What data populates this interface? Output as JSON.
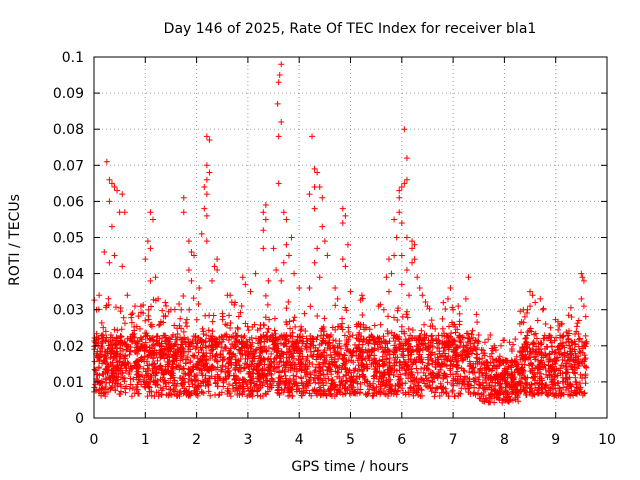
{
  "chart_data": {
    "type": "scatter",
    "title": "Day 146 of 2025, Rate Of TEC Index for receiver bla1",
    "xlabel": "GPS time / hours",
    "ylabel": "ROTI / TECUs",
    "xlim": [
      0,
      10
    ],
    "ylim": [
      0,
      0.1
    ],
    "x_ticks": [
      "0",
      "1",
      "2",
      "3",
      "4",
      "5",
      "6",
      "7",
      "8",
      "9",
      "10"
    ],
    "y_ticks": [
      "0",
      "0.01",
      "0.02",
      "0.03",
      "0.04",
      "0.05",
      "0.06",
      "0.07",
      "0.08",
      "0.09",
      "0.1"
    ],
    "grid": true,
    "marker": "+",
    "series_color": "#ff0000",
    "data_range_hours": [
      0,
      9.6
    ],
    "series": [
      {
        "name": "ROTI",
        "points": [
          [
            0.25,
            0.071
          ],
          [
            0.3,
            0.066
          ],
          [
            0.35,
            0.065
          ],
          [
            0.4,
            0.064
          ],
          [
            0.45,
            0.063
          ],
          [
            0.3,
            0.06
          ],
          [
            0.55,
            0.062
          ],
          [
            0.5,
            0.057
          ],
          [
            0.6,
            0.057
          ],
          [
            0.35,
            0.053
          ],
          [
            0.2,
            0.046
          ],
          [
            0.4,
            0.045
          ],
          [
            0.3,
            0.043
          ],
          [
            0.55,
            0.042
          ],
          [
            0.1,
            0.034
          ],
          [
            0.05,
            0.03
          ],
          [
            0.65,
            0.034
          ],
          [
            0.75,
            0.029
          ],
          [
            1.1,
            0.057
          ],
          [
            1.15,
            0.055
          ],
          [
            1.05,
            0.049
          ],
          [
            1.1,
            0.047
          ],
          [
            1.0,
            0.044
          ],
          [
            1.2,
            0.039
          ],
          [
            1.1,
            0.038
          ],
          [
            1.25,
            0.033
          ],
          [
            1.5,
            0.03
          ],
          [
            1.7,
            0.03
          ],
          [
            1.75,
            0.061
          ],
          [
            1.75,
            0.057
          ],
          [
            1.85,
            0.049
          ],
          [
            1.9,
            0.046
          ],
          [
            1.95,
            0.045
          ],
          [
            1.85,
            0.041
          ],
          [
            1.9,
            0.038
          ],
          [
            2.05,
            0.036
          ],
          [
            2.2,
            0.078
          ],
          [
            2.25,
            0.077
          ],
          [
            2.2,
            0.07
          ],
          [
            2.25,
            0.068
          ],
          [
            2.2,
            0.066
          ],
          [
            2.15,
            0.064
          ],
          [
            2.2,
            0.062
          ],
          [
            2.15,
            0.058
          ],
          [
            2.2,
            0.056
          ],
          [
            2.1,
            0.051
          ],
          [
            2.2,
            0.049
          ],
          [
            2.4,
            0.044
          ],
          [
            2.35,
            0.042
          ],
          [
            2.4,
            0.041
          ],
          [
            2.3,
            0.038
          ],
          [
            2.6,
            0.034
          ],
          [
            2.75,
            0.032
          ],
          [
            2.9,
            0.039
          ],
          [
            2.95,
            0.037
          ],
          [
            3.05,
            0.035
          ],
          [
            3.15,
            0.04
          ],
          [
            3.65,
            0.098
          ],
          [
            3.62,
            0.095
          ],
          [
            3.6,
            0.093
          ],
          [
            3.58,
            0.087
          ],
          [
            3.65,
            0.082
          ],
          [
            3.6,
            0.078
          ],
          [
            3.6,
            0.065
          ],
          [
            3.35,
            0.059
          ],
          [
            3.3,
            0.057
          ],
          [
            3.35,
            0.055
          ],
          [
            3.7,
            0.057
          ],
          [
            3.75,
            0.055
          ],
          [
            3.3,
            0.052
          ],
          [
            3.85,
            0.05
          ],
          [
            3.75,
            0.048
          ],
          [
            3.5,
            0.047
          ],
          [
            3.3,
            0.047
          ],
          [
            3.8,
            0.045
          ],
          [
            3.7,
            0.043
          ],
          [
            3.55,
            0.041
          ],
          [
            3.4,
            0.038
          ],
          [
            3.9,
            0.04
          ],
          [
            3.65,
            0.038
          ],
          [
            4.0,
            0.036
          ],
          [
            4.25,
            0.078
          ],
          [
            4.3,
            0.069
          ],
          [
            4.35,
            0.068
          ],
          [
            4.3,
            0.064
          ],
          [
            4.4,
            0.064
          ],
          [
            4.45,
            0.061
          ],
          [
            4.2,
            0.062
          ],
          [
            4.3,
            0.058
          ],
          [
            4.45,
            0.053
          ],
          [
            4.5,
            0.049
          ],
          [
            4.35,
            0.047
          ],
          [
            4.55,
            0.045
          ],
          [
            4.3,
            0.043
          ],
          [
            4.4,
            0.039
          ],
          [
            4.2,
            0.036
          ],
          [
            4.7,
            0.036
          ],
          [
            4.75,
            0.033
          ],
          [
            4.85,
            0.058
          ],
          [
            4.9,
            0.056
          ],
          [
            4.85,
            0.054
          ],
          [
            4.95,
            0.048
          ],
          [
            4.85,
            0.044
          ],
          [
            4.9,
            0.042
          ],
          [
            5.0,
            0.035
          ],
          [
            5.3,
            0.025
          ],
          [
            5.55,
            0.031
          ],
          [
            5.85,
            0.055
          ],
          [
            5.9,
            0.05
          ],
          [
            5.85,
            0.045
          ],
          [
            5.75,
            0.044
          ],
          [
            5.8,
            0.04
          ],
          [
            5.7,
            0.039
          ],
          [
            5.75,
            0.035
          ],
          [
            5.65,
            0.03
          ],
          [
            6.05,
            0.08
          ],
          [
            6.1,
            0.072
          ],
          [
            6.1,
            0.066
          ],
          [
            6.05,
            0.065
          ],
          [
            6.0,
            0.064
          ],
          [
            5.95,
            0.063
          ],
          [
            5.95,
            0.061
          ],
          [
            5.95,
            0.057
          ],
          [
            6.0,
            0.054
          ],
          [
            6.1,
            0.05
          ],
          [
            6.2,
            0.049
          ],
          [
            6.25,
            0.048
          ],
          [
            6.2,
            0.047
          ],
          [
            6.0,
            0.045
          ],
          [
            6.25,
            0.044
          ],
          [
            6.2,
            0.043
          ],
          [
            6.1,
            0.041
          ],
          [
            6.3,
            0.039
          ],
          [
            6.0,
            0.037
          ],
          [
            6.35,
            0.036
          ],
          [
            6.4,
            0.034
          ],
          [
            6.5,
            0.031
          ],
          [
            6.95,
            0.036
          ],
          [
            6.9,
            0.033
          ],
          [
            7.0,
            0.03
          ],
          [
            7.3,
            0.039
          ],
          [
            7.25,
            0.033
          ],
          [
            7.1,
            0.031
          ],
          [
            7.5,
            0.023
          ],
          [
            7.8,
            0.02
          ],
          [
            8.1,
            0.021
          ],
          [
            8.5,
            0.035
          ],
          [
            8.55,
            0.034
          ],
          [
            8.6,
            0.032
          ],
          [
            8.5,
            0.031
          ],
          [
            8.45,
            0.03
          ],
          [
            8.4,
            0.028
          ],
          [
            8.7,
            0.033
          ],
          [
            8.75,
            0.03
          ],
          [
            8.65,
            0.027
          ],
          [
            8.9,
            0.025
          ],
          [
            9.5,
            0.04
          ],
          [
            9.52,
            0.039
          ],
          [
            9.55,
            0.038
          ],
          [
            9.5,
            0.033
          ],
          [
            9.55,
            0.031
          ],
          [
            9.45,
            0.027
          ]
        ]
      }
    ]
  }
}
